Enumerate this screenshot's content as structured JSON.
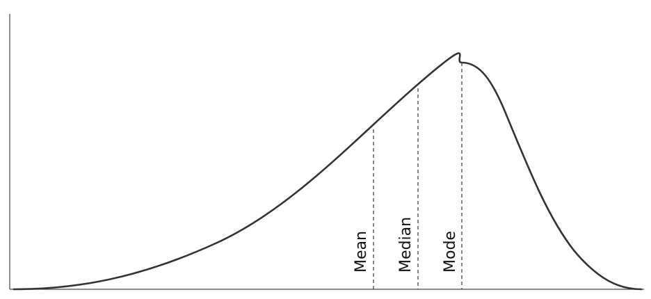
{
  "diagram": {
    "type": "skewed-distribution",
    "skew": "left",
    "curve_color": "#333333",
    "axis_color": "#444444",
    "marker_color": "#333333",
    "markers": [
      {
        "label": "Mean"
      },
      {
        "label": "Median"
      },
      {
        "label": "Mode"
      }
    ]
  }
}
